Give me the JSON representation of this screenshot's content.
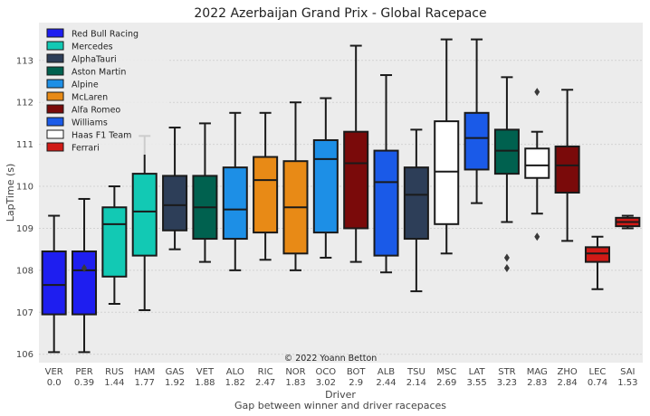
{
  "chart_data": {
    "type": "boxplot",
    "title": "2022 Azerbaijan Grand Prix - Global Racepace",
    "xlabel": "Driver",
    "xlabel_sub": "Gap between winner and driver racepaces",
    "ylabel": "LapTime (s)",
    "ylim": [
      105.8,
      113.9
    ],
    "yticks": [
      106,
      107,
      108,
      109,
      110,
      111,
      112,
      113
    ],
    "annotation": "© 2022 Yoann Betton",
    "legend": [
      {
        "name": "Red Bull Racing",
        "color": "#1e1ef0"
      },
      {
        "name": "Mercedes",
        "color": "#12c9b4"
      },
      {
        "name": "AlphaTauri",
        "color": "#2d3e58"
      },
      {
        "name": "Aston Martin",
        "color": "#00614f"
      },
      {
        "name": "Alpine",
        "color": "#1d8fe6"
      },
      {
        "name": "McLaren",
        "color": "#e88a16"
      },
      {
        "name": "Alfa Romeo",
        "color": "#7a0a0a"
      },
      {
        "name": "Williams",
        "color": "#1a5ae8"
      },
      {
        "name": "Haas F1 Team",
        "color": "#ffffff"
      },
      {
        "name": "Ferrari",
        "color": "#d01a16"
      }
    ],
    "drivers": [
      {
        "code": "VER",
        "gap": "0.0",
        "color": "#1e1ef0",
        "whislo": 106.05,
        "q1": 106.95,
        "med": 107.65,
        "q3": 108.45,
        "whishi": 109.3,
        "fliers": []
      },
      {
        "code": "PER",
        "gap": "0.39",
        "color": "#1e1ef0",
        "whislo": 106.05,
        "q1": 106.95,
        "med": 108.0,
        "q3": 108.45,
        "whishi": 109.7,
        "fliers": [
          108.05
        ]
      },
      {
        "code": "RUS",
        "gap": "1.44",
        "color": "#12c9b4",
        "whislo": 107.2,
        "q1": 107.85,
        "med": 109.1,
        "q3": 109.5,
        "whishi": 110.0,
        "fliers": []
      },
      {
        "code": "HAM",
        "gap": "1.77",
        "color": "#12c9b4",
        "whislo": 107.05,
        "q1": 108.35,
        "med": 109.4,
        "q3": 110.3,
        "whishi": 111.2,
        "fliers": []
      },
      {
        "code": "GAS",
        "gap": "1.92",
        "color": "#2d3e58",
        "whislo": 108.5,
        "q1": 108.95,
        "med": 109.55,
        "q3": 110.25,
        "whishi": 111.4,
        "fliers": []
      },
      {
        "code": "VET",
        "gap": "1.88",
        "color": "#00614f",
        "whislo": 108.2,
        "q1": 108.75,
        "med": 109.5,
        "q3": 110.25,
        "whishi": 111.5,
        "fliers": []
      },
      {
        "code": "ALO",
        "gap": "1.82",
        "color": "#1d8fe6",
        "whislo": 108.0,
        "q1": 108.75,
        "med": 109.45,
        "q3": 110.45,
        "whishi": 111.75,
        "fliers": []
      },
      {
        "code": "RIC",
        "gap": "2.47",
        "color": "#e88a16",
        "whislo": 108.25,
        "q1": 108.9,
        "med": 110.15,
        "q3": 110.7,
        "whishi": 111.75,
        "fliers": []
      },
      {
        "code": "NOR",
        "gap": "1.83",
        "color": "#e88a16",
        "whislo": 108.0,
        "q1": 108.4,
        "med": 109.5,
        "q3": 110.6,
        "whishi": 112.0,
        "fliers": []
      },
      {
        "code": "OCO",
        "gap": "3.02",
        "color": "#1d8fe6",
        "whislo": 108.3,
        "q1": 108.9,
        "med": 110.65,
        "q3": 111.1,
        "whishi": 112.1,
        "fliers": []
      },
      {
        "code": "BOT",
        "gap": "2.9",
        "color": "#7a0a0a",
        "whislo": 108.2,
        "q1": 109.0,
        "med": 110.55,
        "q3": 111.3,
        "whishi": 113.35,
        "fliers": []
      },
      {
        "code": "ALB",
        "gap": "2.44",
        "color": "#1a5ae8",
        "whislo": 107.95,
        "q1": 108.35,
        "med": 110.1,
        "q3": 110.85,
        "whishi": 112.65,
        "fliers": []
      },
      {
        "code": "TSU",
        "gap": "2.14",
        "color": "#2d3e58",
        "whislo": 107.5,
        "q1": 108.75,
        "med": 109.8,
        "q3": 110.45,
        "whishi": 111.35,
        "fliers": []
      },
      {
        "code": "MSC",
        "gap": "2.69",
        "color": "#ffffff",
        "whislo": 108.4,
        "q1": 109.1,
        "med": 110.35,
        "q3": 111.55,
        "whishi": 113.5,
        "fliers": []
      },
      {
        "code": "LAT",
        "gap": "3.55",
        "color": "#1a5ae8",
        "whislo": 109.6,
        "q1": 110.4,
        "med": 111.15,
        "q3": 111.75,
        "whishi": 113.5,
        "fliers": []
      },
      {
        "code": "STR",
        "gap": "3.23",
        "color": "#00614f",
        "whislo": 109.15,
        "q1": 110.3,
        "med": 110.85,
        "q3": 111.35,
        "whishi": 112.6,
        "fliers": [
          108.3,
          108.05
        ]
      },
      {
        "code": "MAG",
        "gap": "2.83",
        "color": "#ffffff",
        "whislo": 109.35,
        "q1": 110.2,
        "med": 110.5,
        "q3": 110.9,
        "whishi": 111.3,
        "fliers": [
          112.25,
          108.8
        ]
      },
      {
        "code": "ZHO",
        "gap": "2.84",
        "color": "#7a0a0a",
        "whislo": 108.7,
        "q1": 109.85,
        "med": 110.5,
        "q3": 110.95,
        "whishi": 112.3,
        "fliers": []
      },
      {
        "code": "LEC",
        "gap": "0.74",
        "color": "#d01a16",
        "whislo": 107.55,
        "q1": 108.2,
        "med": 108.4,
        "q3": 108.55,
        "whishi": 108.8,
        "fliers": []
      },
      {
        "code": "SAI",
        "gap": "1.53",
        "color": "#d01a16",
        "whislo": 109.0,
        "q1": 109.05,
        "med": 109.15,
        "q3": 109.25,
        "whishi": 109.3,
        "fliers": []
      }
    ]
  }
}
